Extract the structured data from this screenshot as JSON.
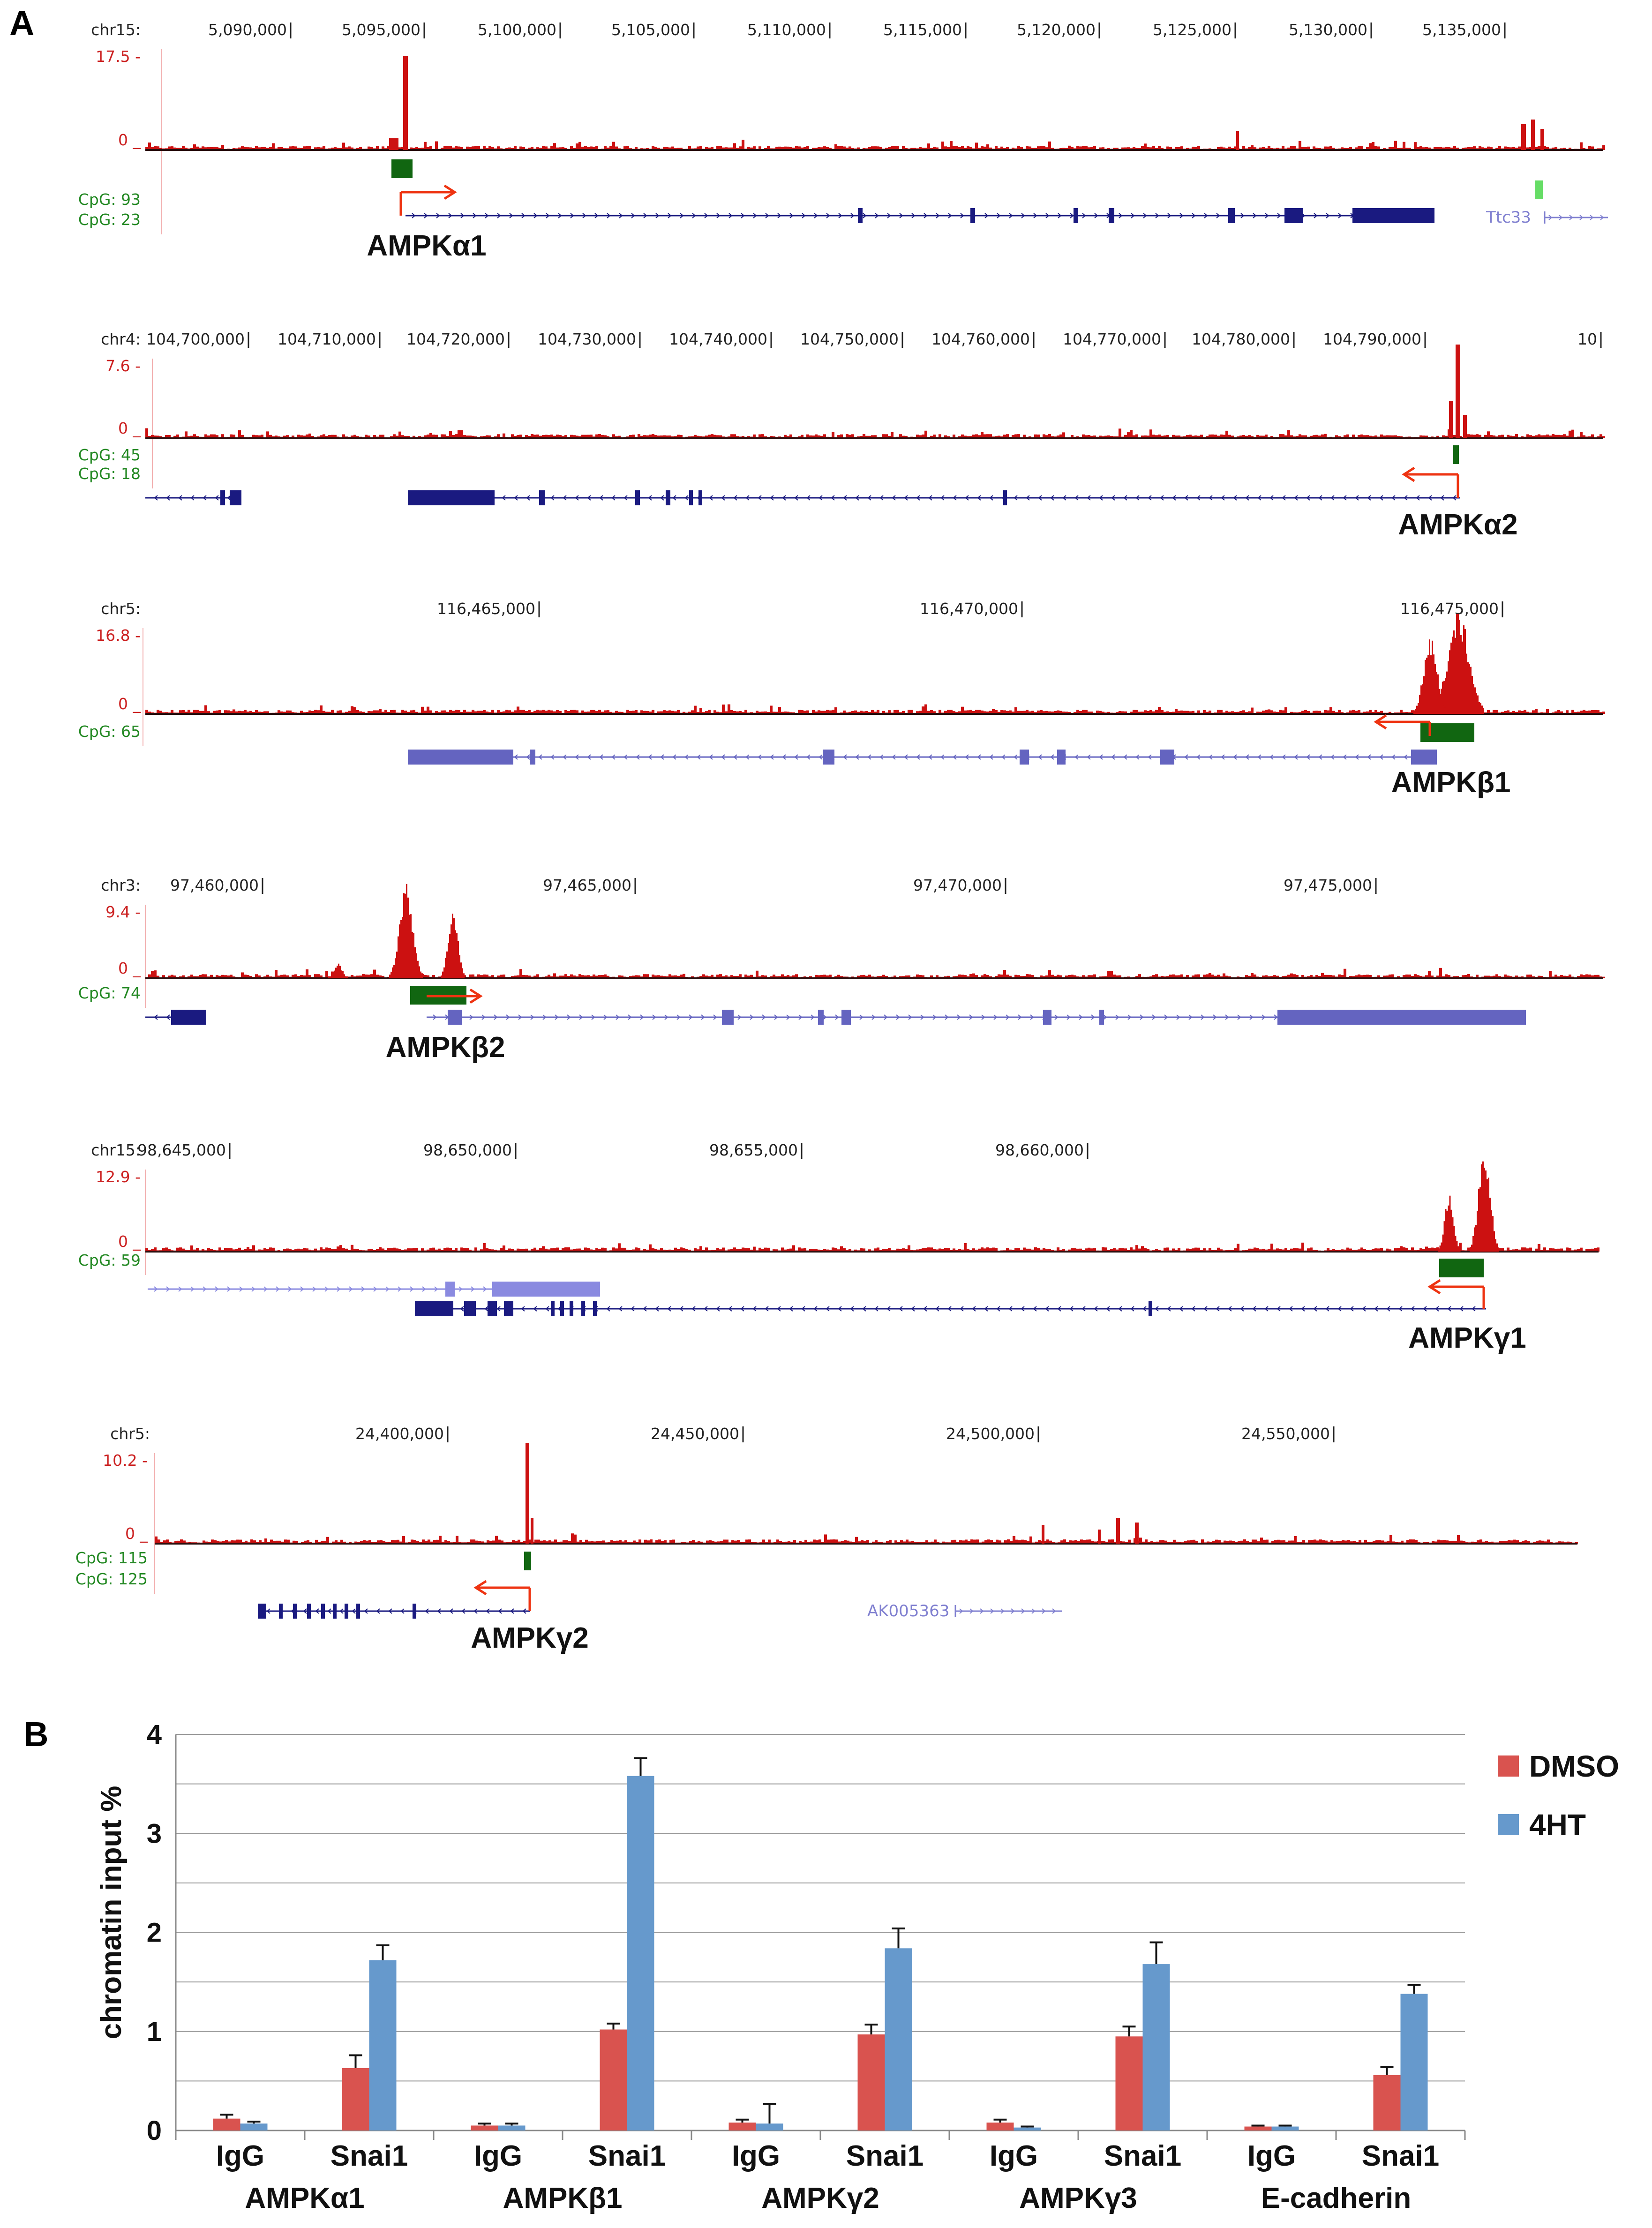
{
  "panel_a": {
    "label": "A",
    "tracks": [
      {
        "chrom": "chr15:",
        "coords": [
          "5,090,000",
          "5,095,000",
          "5,100,000",
          "5,105,000",
          "5,110,000",
          "5,115,000",
          "5,120,000",
          "5,125,000",
          "5,130,000",
          "5,135,000"
        ],
        "ymax": "17.5 -",
        "yzero": "0 _",
        "cpg": [
          "CpG: 93",
          "CpG: 23"
        ],
        "gene": "AMPKα1",
        "extra_gene": "Ttc33",
        "color_signal": "#cc1111"
      },
      {
        "chrom": "chr4:",
        "coords": [
          "104,700,000",
          "104,710,000",
          "104,720,000",
          "104,730,000",
          "104,740,000",
          "104,750,000",
          "104,760,000",
          "104,770,000",
          "104,780,000",
          "104,790,000",
          "10"
        ],
        "ymax": "7.6 -",
        "yzero": "0 _",
        "cpg": [
          "CpG: 45",
          "CpG: 18"
        ],
        "gene": "AMPKα2"
      },
      {
        "chrom": "chr5:",
        "coords": [
          "116,465,000",
          "116,470,000",
          "116,475,000"
        ],
        "ymax": "16.8 -",
        "yzero": "0 _",
        "cpg": [
          "CpG: 65"
        ],
        "gene": "AMPKβ1"
      },
      {
        "chrom": "chr3:",
        "coords": [
          "97,460,000",
          "97,465,000",
          "97,470,000",
          "97,475,000"
        ],
        "ymax": "9.4 -",
        "yzero": "0 _",
        "cpg": [
          "CpG: 74"
        ],
        "gene": "AMPKβ2"
      },
      {
        "chrom": "chr15:",
        "coords": [
          "98,645,000",
          "98,650,000",
          "98,655,000",
          "98,660,000"
        ],
        "ymax": "12.9 -",
        "yzero": "0 _",
        "cpg": [
          "CpG: 59"
        ],
        "gene": "AMPKγ1"
      },
      {
        "chrom": "chr5:",
        "coords": [
          "24,400,000",
          "24,450,000",
          "24,500,000",
          "24,550,000"
        ],
        "ymax": "10.2 -",
        "yzero": "0 _",
        "cpg": [
          "CpG: 115",
          "CpG: 125"
        ],
        "gene": "AMPKγ2",
        "extra_gene": "AK005363"
      }
    ]
  },
  "chart_data": {
    "type": "bar",
    "panel_label": "B",
    "ylabel": "chromatin input %",
    "ylim": [
      0,
      4
    ],
    "yticks": [
      "0",
      "1",
      "2",
      "3",
      "4"
    ],
    "grid": true,
    "legend_position": "top-right",
    "groups": [
      {
        "name": "AMPKα1",
        "subcategories": [
          "IgG",
          "Snai1"
        ]
      },
      {
        "name": "AMPKβ1",
        "subcategories": [
          "IgG",
          "Snai1"
        ]
      },
      {
        "name": "AMPKγ2",
        "subcategories": [
          "IgG",
          "Snai1"
        ]
      },
      {
        "name": "AMPKγ3",
        "subcategories": [
          "IgG",
          "Snai1"
        ]
      },
      {
        "name": "E-cadherin",
        "subcategories": [
          "IgG",
          "Snai1"
        ]
      }
    ],
    "series": [
      {
        "name": "DMSO",
        "color": "#d9534f",
        "values": [
          [
            0.12,
            0.63
          ],
          [
            0.05,
            1.02
          ],
          [
            0.08,
            0.97
          ],
          [
            0.08,
            0.95
          ],
          [
            0.04,
            0.56
          ]
        ],
        "errors": [
          [
            0.04,
            0.13
          ],
          [
            0.02,
            0.06
          ],
          [
            0.03,
            0.1
          ],
          [
            0.03,
            0.1
          ],
          [
            0.01,
            0.08
          ]
        ]
      },
      {
        "name": "4HT",
        "color": "#6699cc",
        "values": [
          [
            0.07,
            1.72
          ],
          [
            0.05,
            3.58
          ],
          [
            0.07,
            1.84
          ],
          [
            0.03,
            1.68
          ],
          [
            0.04,
            1.38
          ]
        ],
        "errors": [
          [
            0.02,
            0.15
          ],
          [
            0.02,
            0.18
          ],
          [
            0.2,
            0.2
          ],
          [
            0.01,
            0.22
          ],
          [
            0.01,
            0.09
          ]
        ]
      }
    ]
  }
}
